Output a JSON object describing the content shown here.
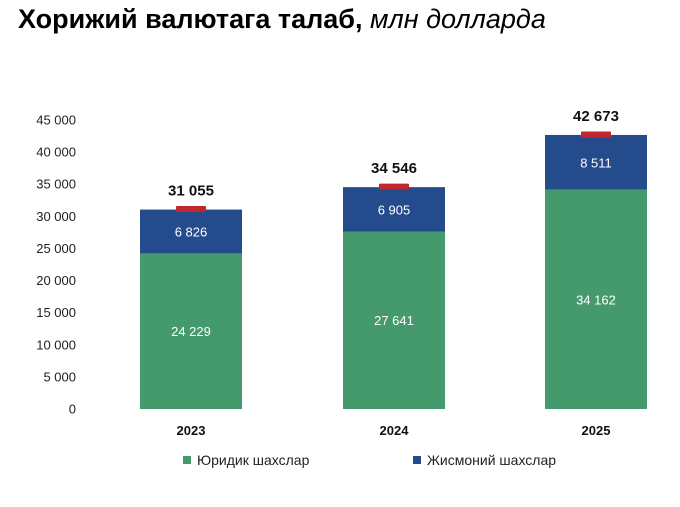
{
  "title": {
    "main": "Хорижий валютага талаб,",
    "unit": "млн долларда"
  },
  "colors": {
    "series1": "#449a6c",
    "series2": "#244b8b",
    "marker": "#c0282d"
  },
  "chart_data": {
    "type": "bar",
    "stacked": true,
    "title": "Хорижий валютага талаб, млн долларда",
    "categories": [
      "2023",
      "2024",
      "2025"
    ],
    "series": [
      {
        "name": "Юридик шахслар",
        "values": [
          24229,
          27641,
          34162
        ],
        "labels": [
          "24 229",
          "27 641",
          "34 162"
        ]
      },
      {
        "name": "Жисмоний шахслар",
        "values": [
          6826,
          6905,
          8511
        ],
        "labels": [
          "6 826",
          "6 905",
          "8 511"
        ]
      }
    ],
    "totals": [
      31055,
      34546,
      42673
    ],
    "total_labels": [
      "31 055",
      "34 546",
      "42 673"
    ],
    "ylim": [
      0,
      45000
    ],
    "yticks": [
      0,
      5000,
      10000,
      15000,
      20000,
      25000,
      30000,
      35000,
      40000,
      45000
    ],
    "ytick_labels": [
      "0",
      "5 000",
      "10 000",
      "15 000",
      "20 000",
      "25 000",
      "30 000",
      "35 000",
      "40 000",
      "45 000"
    ],
    "grid": false,
    "legend_position": "bottom"
  }
}
